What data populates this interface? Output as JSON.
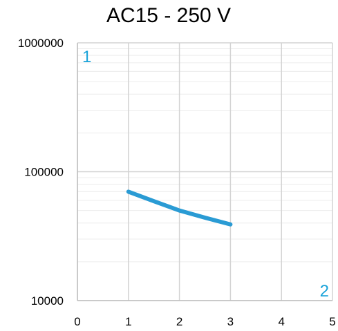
{
  "chart_data": {
    "type": "line",
    "title": "AC15 - 250 V",
    "xlabel": "",
    "ylabel": "",
    "x_scale": "linear",
    "y_scale": "log",
    "xlim": [
      0,
      5
    ],
    "ylim": [
      10000,
      1000000
    ],
    "x_ticks": [
      0,
      1,
      2,
      3,
      4,
      5
    ],
    "x_tick_labels": [
      "0",
      "1",
      "2",
      "3",
      "4",
      "5"
    ],
    "y_ticks": [
      10000,
      100000,
      1000000
    ],
    "y_tick_labels": [
      "10000",
      "100000",
      "1000000"
    ],
    "grid": true,
    "series": [
      {
        "color": "#2a9bd4",
        "x": [
          1,
          1.5,
          2,
          2.5,
          3
        ],
        "y": [
          70000,
          59000,
          50000,
          44000,
          39000
        ]
      }
    ],
    "annotations": [
      {
        "text": "1",
        "position": "top-left",
        "color": "#1aa3d9"
      },
      {
        "text": "2",
        "position": "bottom-right",
        "color": "#1aa3d9"
      }
    ]
  }
}
